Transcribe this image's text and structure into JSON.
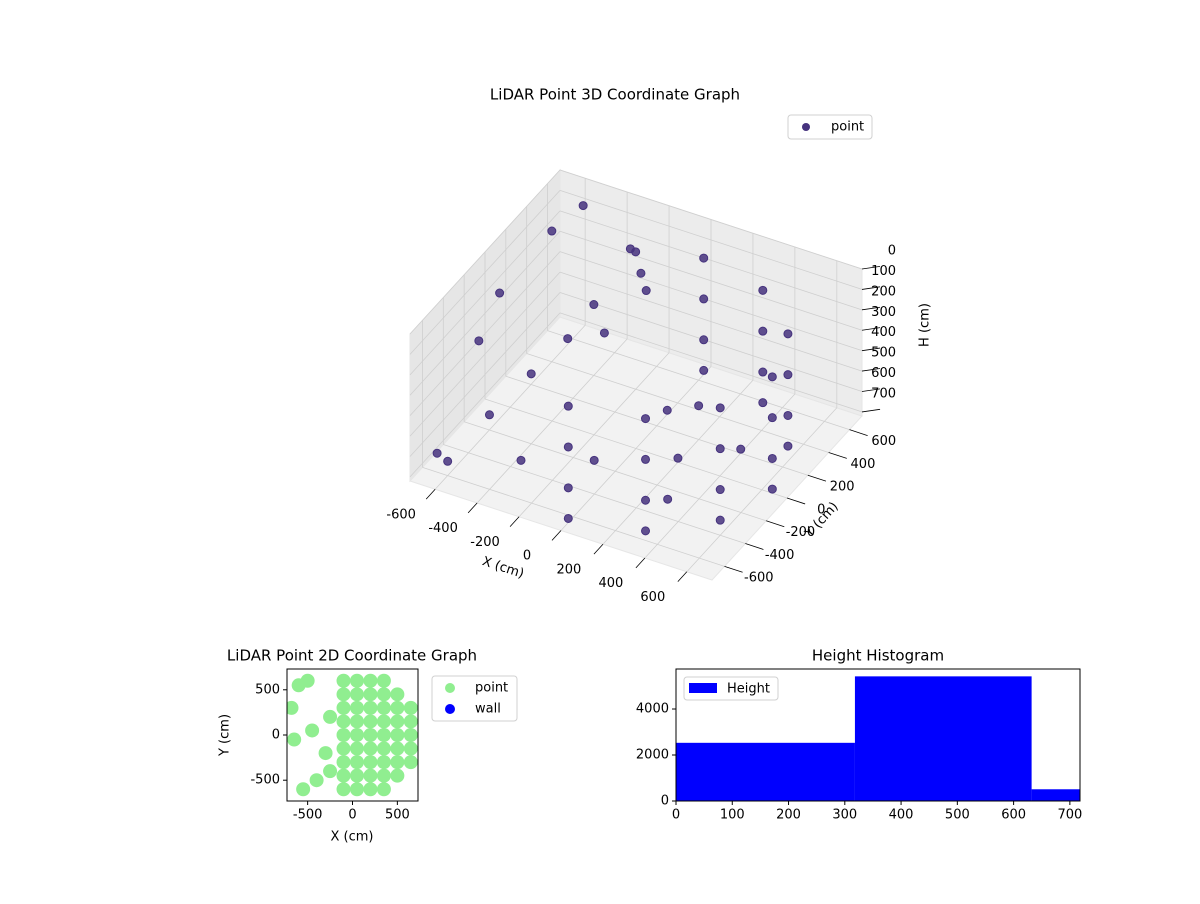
{
  "chart_data": [
    {
      "type": "scatter3d",
      "title": "LiDAR Point 3D Coordinate Graph",
      "xlabel": "X (cm)",
      "ylabel": "Y (cm)",
      "zlabel": "H (cm)",
      "xlim": [
        -720,
        720
      ],
      "ylim": [
        -720,
        720
      ],
      "zlim": [
        0,
        720
      ],
      "zinvert": true,
      "xticks": [
        -600,
        -400,
        -200,
        0,
        200,
        400,
        600
      ],
      "yticks": [
        -600,
        -400,
        -200,
        0,
        200,
        400,
        600
      ],
      "zticks": [
        0,
        100,
        200,
        300,
        400,
        500,
        600,
        700
      ],
      "grid": true,
      "legend": "upper right",
      "series": [
        {
          "name": "point",
          "color": "#46337e",
          "x": [
            0,
            325,
            563,
            650,
            563,
            325,
            0,
            0,
            325,
            563,
            650,
            563,
            325,
            0,
            0,
            325,
            563,
            650,
            563,
            325,
            0,
            0,
            325,
            563,
            650,
            563,
            325,
            0,
            200,
            400,
            300,
            0,
            -100,
            100,
            -250,
            -200,
            -300,
            -150,
            -350,
            -250,
            -650,
            -700,
            -600,
            -500,
            -450,
            -400,
            -600,
            -300,
            -700,
            -550
          ],
          "y": [
            -650,
            -563,
            -325,
            0,
            325,
            563,
            650,
            -650,
            -563,
            -325,
            0,
            325,
            563,
            650,
            -650,
            -563,
            -325,
            0,
            325,
            563,
            650,
            -650,
            -563,
            -325,
            0,
            325,
            563,
            650,
            0,
            200,
            -300,
            300,
            -200,
            400,
            500,
            450,
            550,
            400,
            300,
            200,
            -200,
            100,
            400,
            -400,
            -100,
            150,
            -600,
            -500,
            -500,
            600
          ],
          "z": [
            150,
            150,
            150,
            150,
            150,
            150,
            150,
            350,
            350,
            350,
            350,
            350,
            350,
            350,
            550,
            550,
            550,
            550,
            550,
            550,
            550,
            700,
            700,
            700,
            700,
            700,
            700,
            700,
            700,
            700,
            700,
            700,
            700,
            700,
            120,
            180,
            150,
            220,
            300,
            350,
            300,
            250,
            80,
            500,
            450,
            400,
            650,
            600,
            700,
            50
          ]
        }
      ]
    },
    {
      "type": "scatter",
      "title": "LiDAR Point 2D Coordinate Graph",
      "xlabel": "X (cm)",
      "ylabel": "Y (cm)",
      "xlim": [
        -730,
        730
      ],
      "ylim": [
        -730,
        730
      ],
      "xticks": [
        -500,
        0,
        500
      ],
      "yticks": [
        -500,
        0,
        500
      ],
      "legend": "outside right",
      "series": [
        {
          "name": "point",
          "color": "#90ee90",
          "x": [
            -100,
            -100,
            -100,
            -100,
            -100,
            -100,
            -100,
            -100,
            -100,
            50,
            50,
            50,
            50,
            50,
            50,
            50,
            50,
            50,
            200,
            200,
            200,
            200,
            200,
            200,
            200,
            200,
            200,
            350,
            350,
            350,
            350,
            350,
            350,
            350,
            350,
            350,
            500,
            500,
            500,
            500,
            500,
            500,
            500,
            650,
            650,
            650,
            650,
            650,
            -600,
            -500,
            -650,
            -550,
            -300,
            -250,
            -250,
            -400,
            -680,
            -450
          ],
          "y": [
            -600,
            -450,
            -300,
            -150,
            0,
            150,
            300,
            450,
            600,
            -600,
            -450,
            -300,
            -150,
            0,
            150,
            300,
            450,
            600,
            -600,
            -450,
            -300,
            -150,
            0,
            150,
            300,
            450,
            600,
            -600,
            -450,
            -300,
            -150,
            0,
            150,
            300,
            450,
            600,
            -450,
            -300,
            -150,
            0,
            150,
            300,
            450,
            -300,
            -150,
            0,
            150,
            300,
            550,
            600,
            -50,
            -600,
            -200,
            -400,
            200,
            -500,
            300,
            50
          ]
        },
        {
          "name": "wall",
          "color": "#0000ff",
          "x": [],
          "y": []
        }
      ]
    },
    {
      "type": "histogram",
      "title": "Height Histogram",
      "bins": [
        0,
        318,
        632,
        718
      ],
      "counts": [
        2530,
        5420,
        510
      ],
      "xlim": [
        0,
        718
      ],
      "ylim": [
        0,
        5740
      ],
      "xticks": [
        0,
        100,
        200,
        300,
        400,
        500,
        600,
        700
      ],
      "yticks": [
        0,
        2000,
        4000
      ],
      "legend": "upper left",
      "series": [
        {
          "name": "Height",
          "color": "#0000ff"
        }
      ]
    }
  ]
}
